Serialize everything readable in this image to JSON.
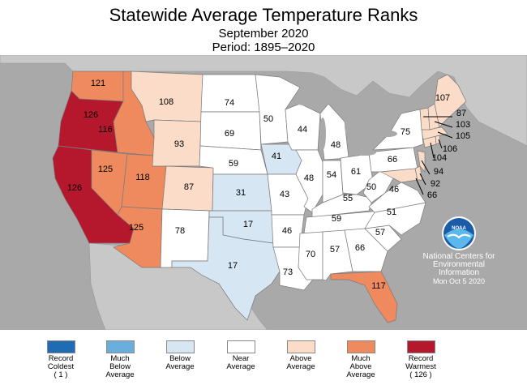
{
  "title": "Statewide Average Temperature Ranks",
  "subtitle": "September 2020",
  "period": "Period: 1895–2020",
  "colors": {
    "ocean": "#a9a9a9",
    "land_other": "#c8c8c8",
    "near": "#ffffff",
    "below": "#d6e6f3",
    "above": "#fbdcc9",
    "much_above": "#ef8a5f",
    "record_warmest": "#b5182c",
    "much_below": "#6aaedb",
    "record_coldest": "#1f6cb5"
  },
  "legend": [
    {
      "label": "Record\nColdest\n( 1 )",
      "color": "#1f6cb5"
    },
    {
      "label": "Much\nBelow\nAverage",
      "color": "#6aaedb"
    },
    {
      "label": "Below\nAverage",
      "color": "#d6e6f3"
    },
    {
      "label": "Near\nAverage",
      "color": "#ffffff"
    },
    {
      "label": "Above\nAverage",
      "color": "#fbdcc9"
    },
    {
      "label": "Much\nAbove\nAverage",
      "color": "#ef8a5f"
    },
    {
      "label": "Record\nWarmest\n( 126 )",
      "color": "#b5182c"
    }
  ],
  "attribution": {
    "logo_text": "NOAA",
    "org": "National Centers for Environmental Information",
    "date": "Mon Oct  5 2020"
  },
  "ranks": {
    "WA": "121",
    "OR": "126",
    "CA": "126",
    "ID": "116",
    "NV": "125",
    "UT": "118",
    "AZ": "125",
    "MT": "108",
    "WY": "93",
    "CO": "87",
    "NM": "78",
    "ND": "74",
    "SD": "69",
    "NE": "59",
    "KS": "31",
    "OK": "17",
    "TX": "17",
    "MN": "50",
    "IA": "41",
    "MO": "43",
    "AR": "46",
    "LA": "73",
    "WI": "44",
    "IL": "48",
    "MI": "48",
    "IN": "54",
    "OH": "61",
    "KY": "55",
    "TN": "59",
    "MS": "70",
    "AL": "57",
    "GA": "66",
    "FL": "117",
    "SC": "57",
    "NC": "51",
    "VA": "46",
    "WV": "50",
    "PA": "66",
    "NY": "75",
    "ME": "107",
    "VT": "87",
    "NH": "103",
    "MA": "105",
    "RI": "106",
    "CT": "104",
    "NJ": "94",
    "DE": "92",
    "MD": "66"
  }
}
